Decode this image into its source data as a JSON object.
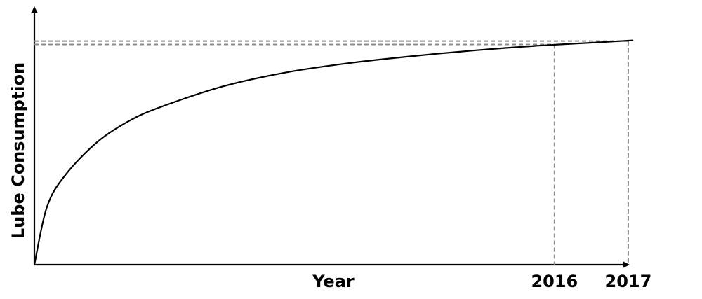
{
  "chart_data": {
    "type": "line",
    "title": "",
    "xlabel": "Year",
    "ylabel": "Lube Consumption",
    "x_tick_labels": [
      "2016",
      "2017"
    ],
    "series": [
      {
        "x": [
          0,
          0.02,
          0.05,
          0.1,
          0.15,
          0.2,
          0.3,
          0.4,
          0.5,
          0.6,
          0.7,
          0.8,
          0.9,
          0.95
        ],
        "values": [
          0,
          0.25,
          0.39,
          0.53,
          0.62,
          0.68,
          0.77,
          0.83,
          0.87,
          0.9,
          0.925,
          0.945,
          0.96,
          0.968
        ]
      }
    ],
    "reference_points": [
      {
        "label": "2016",
        "x": 0.825,
        "y": 0.95
      },
      {
        "label": "2017",
        "x": 0.942,
        "y": 0.965
      }
    ],
    "xlim": [
      0,
      1
    ],
    "ylim": [
      0,
      1
    ],
    "grid": false,
    "axis_ticks": false
  }
}
